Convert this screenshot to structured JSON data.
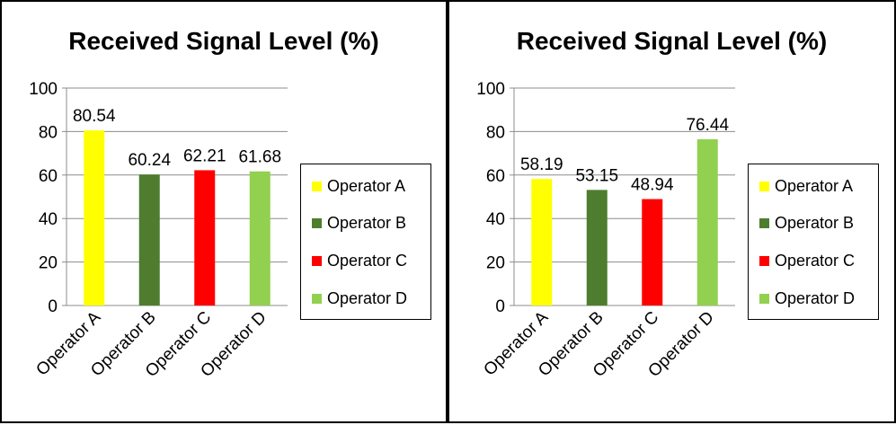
{
  "chart_data": [
    {
      "type": "bar",
      "title": "Received Signal Level (%)",
      "categories": [
        "Operator A",
        "Operator B",
        "Operator C",
        "Operator D"
      ],
      "values": [
        80.54,
        60.24,
        62.21,
        61.68
      ],
      "data_labels": [
        "80.54",
        "60.24",
        "62.21",
        "61.68"
      ],
      "colors": [
        "#ffff00",
        "#4e7d2f",
        "#ff0000",
        "#92d050"
      ],
      "ylim": [
        0,
        100
      ],
      "yticks": [
        "0",
        "20",
        "40",
        "60",
        "80",
        "100"
      ],
      "grid": true,
      "legend_position": "right",
      "legend": [
        "Operator A",
        "Operator B",
        "Operator C",
        "Operator D"
      ]
    },
    {
      "type": "bar",
      "title": "Received Signal Level (%)",
      "categories": [
        "Operator A",
        "Operator B",
        "Operator C",
        "Operator D"
      ],
      "values": [
        58.19,
        53.15,
        48.94,
        76.44
      ],
      "data_labels": [
        "58.19",
        "53.15",
        "48.94",
        "76.44"
      ],
      "colors": [
        "#ffff00",
        "#4e7d2f",
        "#ff0000",
        "#92d050"
      ],
      "ylim": [
        0,
        100
      ],
      "yticks": [
        "0",
        "20",
        "40",
        "60",
        "80",
        "100"
      ],
      "grid": true,
      "legend_position": "right",
      "legend": [
        "Operator A",
        "Operator B",
        "Operator C",
        "Operator D"
      ]
    }
  ]
}
